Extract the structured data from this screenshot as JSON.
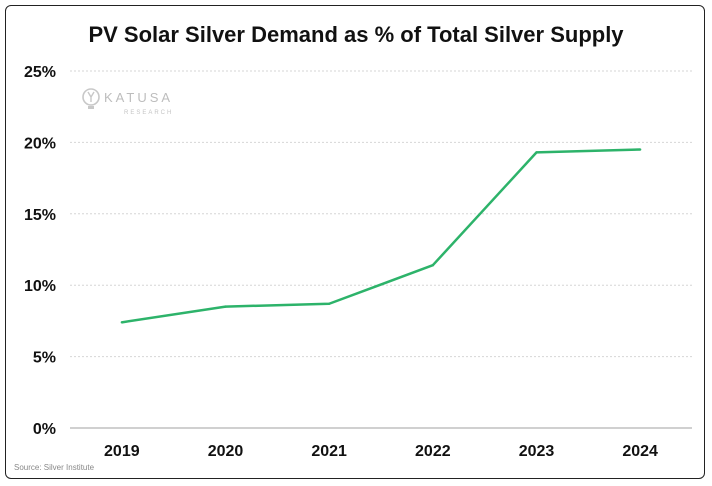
{
  "chart_data": {
    "type": "line",
    "title": "PV Solar Silver Demand as % of Total Silver Supply",
    "categories": [
      "2019",
      "2020",
      "2021",
      "2022",
      "2023",
      "2024"
    ],
    "series": [
      {
        "name": "PV Solar Silver Demand %",
        "color": "#2db36a",
        "values": [
          7.4,
          8.5,
          8.7,
          11.4,
          19.3,
          19.5
        ]
      }
    ],
    "yticks": [
      "0%",
      "5%",
      "10%",
      "15%",
      "20%",
      "25%"
    ],
    "ylim": [
      0,
      25
    ],
    "xlabel": "",
    "ylabel": "",
    "grid": true
  },
  "watermark": {
    "brand": "KATUSA",
    "sub": "RESEARCH"
  },
  "source": "Source: Silver Institute"
}
